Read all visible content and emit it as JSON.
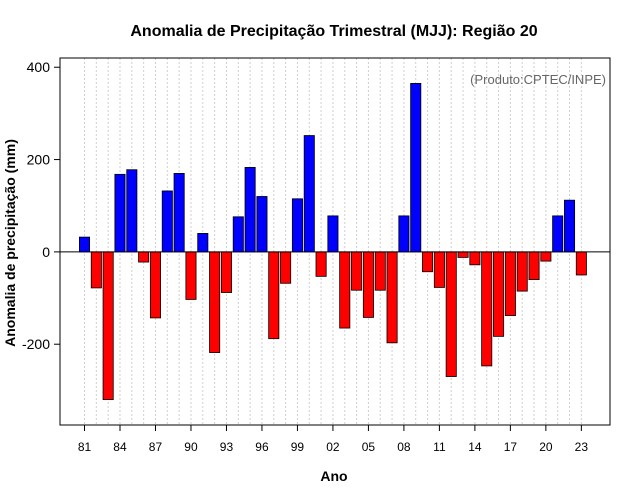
{
  "chart_data": {
    "type": "bar",
    "title": "Anomalia de Precipitação Trimestral (MJJ): Região 20",
    "xlabel": "Ano",
    "ylabel": "Anomalia de precipitação (mm)",
    "annotation": "(Produto:CPTEC/INPE)",
    "ylim": [
      -375,
      420
    ],
    "yticks": [
      -200,
      0,
      200,
      400
    ],
    "years": [
      1981,
      1982,
      1983,
      1984,
      1985,
      1986,
      1987,
      1988,
      1989,
      1990,
      1991,
      1992,
      1993,
      1994,
      1995,
      1996,
      1997,
      1998,
      1999,
      2000,
      2001,
      2002,
      2003,
      2004,
      2005,
      2006,
      2007,
      2008,
      2009,
      2010,
      2011,
      2012,
      2013,
      2014,
      2015,
      2016,
      2017,
      2018,
      2019,
      2020,
      2021,
      2022,
      2023
    ],
    "xtick_labels": [
      "81",
      "84",
      "87",
      "90",
      "93",
      "96",
      "99",
      "02",
      "05",
      "08",
      "11",
      "14",
      "17",
      "20",
      "23"
    ],
    "xtick_years": [
      1981,
      1984,
      1987,
      1990,
      1993,
      1996,
      1999,
      2002,
      2005,
      2008,
      2011,
      2014,
      2017,
      2020,
      2023
    ],
    "values": [
      32,
      -78,
      -320,
      168,
      178,
      -22,
      -143,
      132,
      170,
      -103,
      40,
      -218,
      -88,
      76,
      183,
      120,
      -188,
      -68,
      115,
      252,
      -53,
      78,
      -165,
      -83,
      -142,
      -83,
      -197,
      78,
      365,
      -43,
      -77,
      -270,
      -12,
      -28,
      -247,
      -183,
      -138,
      -85,
      -60,
      -20,
      78,
      112,
      -50
    ],
    "positive_color": "#0000ff",
    "negative_color": "#ff0000",
    "grid": true
  }
}
